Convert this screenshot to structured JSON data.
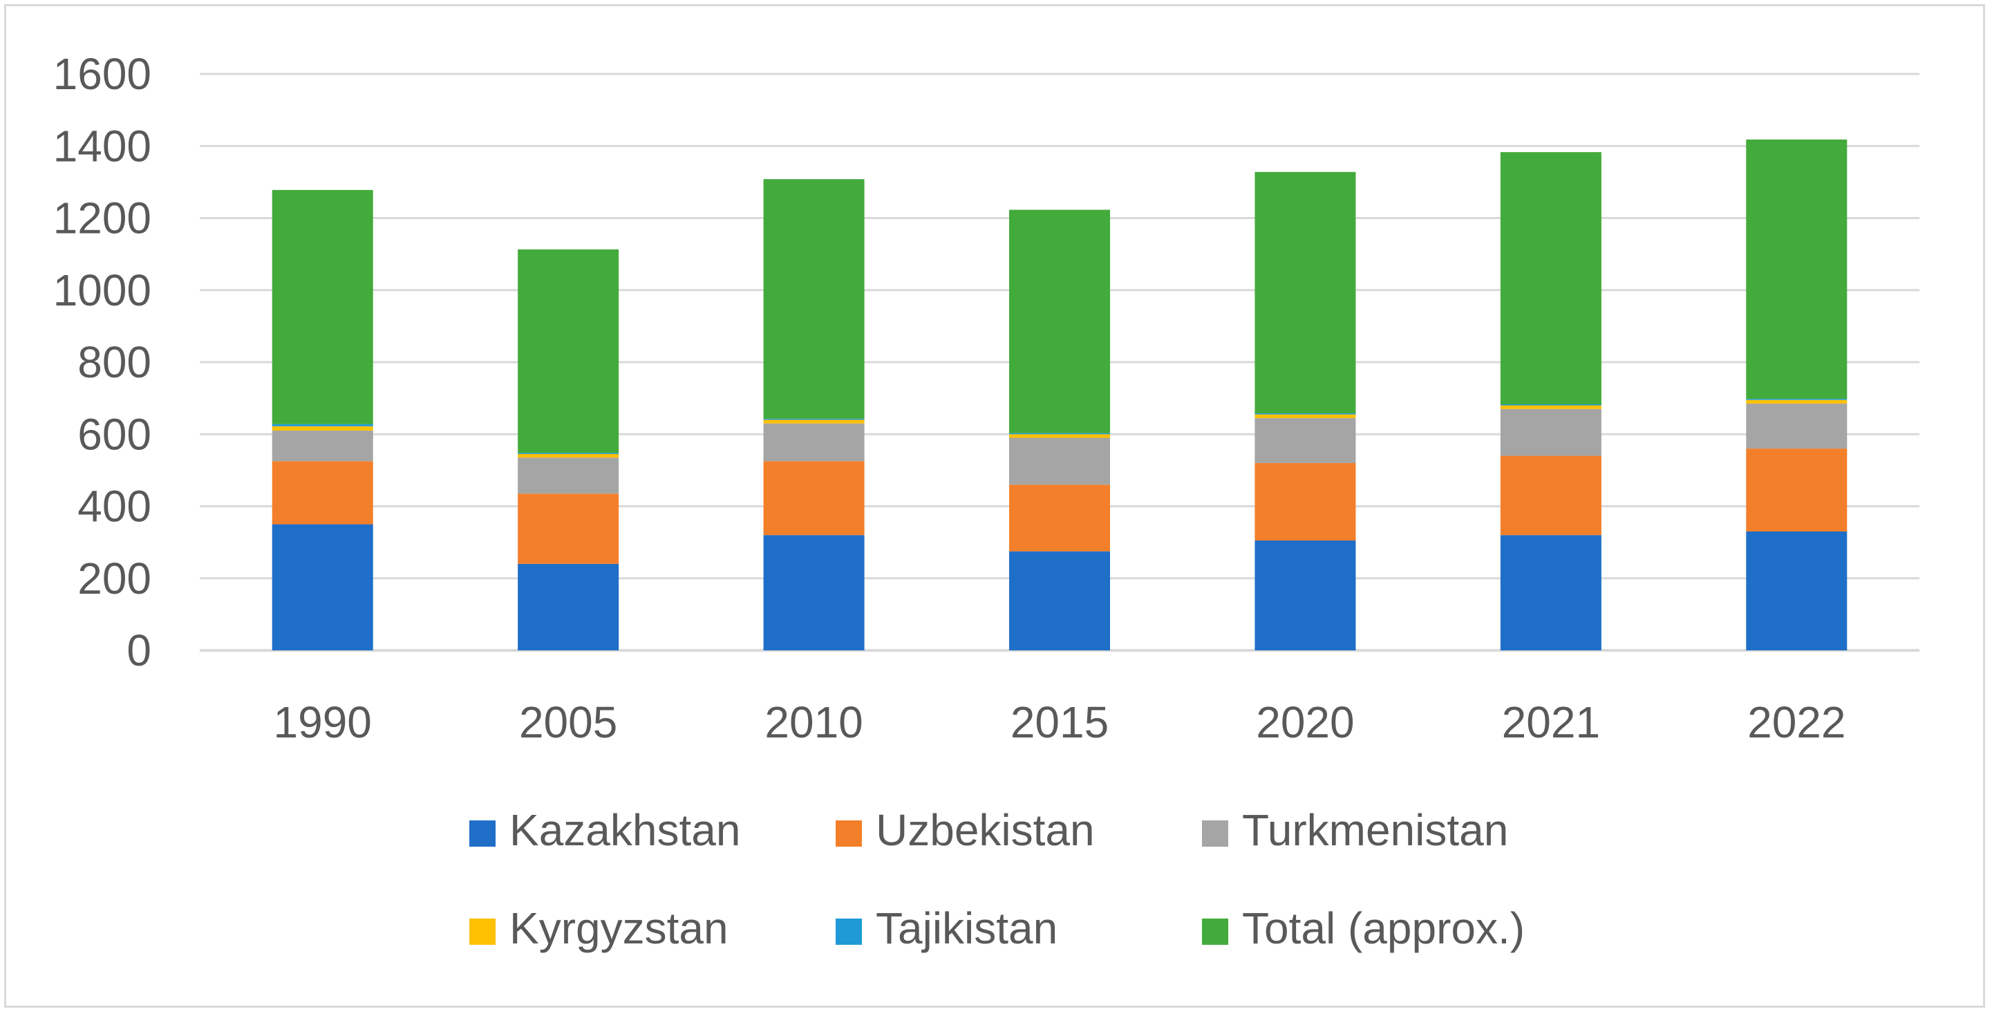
{
  "chart_data": {
    "type": "bar",
    "stacked": true,
    "categories": [
      "1990",
      "2005",
      "2010",
      "2015",
      "2020",
      "2021",
      "2022"
    ],
    "series": [
      {
        "name": "Kazakhstan",
        "color": "#1f6fc9",
        "values": [
          350,
          240,
          320,
          275,
          305,
          320,
          330
        ]
      },
      {
        "name": "Uzbekistan",
        "color": "#f47f2a",
        "values": [
          175,
          195,
          205,
          185,
          215,
          220,
          230
        ]
      },
      {
        "name": "Turkmenistan",
        "color": "#a5a5a5",
        "values": [
          85,
          100,
          105,
          130,
          125,
          130,
          125
        ]
      },
      {
        "name": "Kyrgyzstan",
        "color": "#ffc000",
        "values": [
          12,
          10,
          10,
          10,
          10,
          10,
          10
        ]
      },
      {
        "name": "Tajikistan",
        "color": "#1f9ad6",
        "values": [
          6,
          3,
          3,
          3,
          3,
          3,
          3
        ]
      },
      {
        "name": "Total (approx.)",
        "color": "#43ab3b",
        "values": [
          650,
          565,
          665,
          620,
          670,
          700,
          720
        ]
      }
    ],
    "y_ticks": [
      "0",
      "200",
      "400",
      "600",
      "800",
      "1000",
      "1200",
      "1400",
      "1600"
    ],
    "ylim": [
      0,
      1600
    ],
    "grid": true,
    "legend_position": "bottom"
  }
}
